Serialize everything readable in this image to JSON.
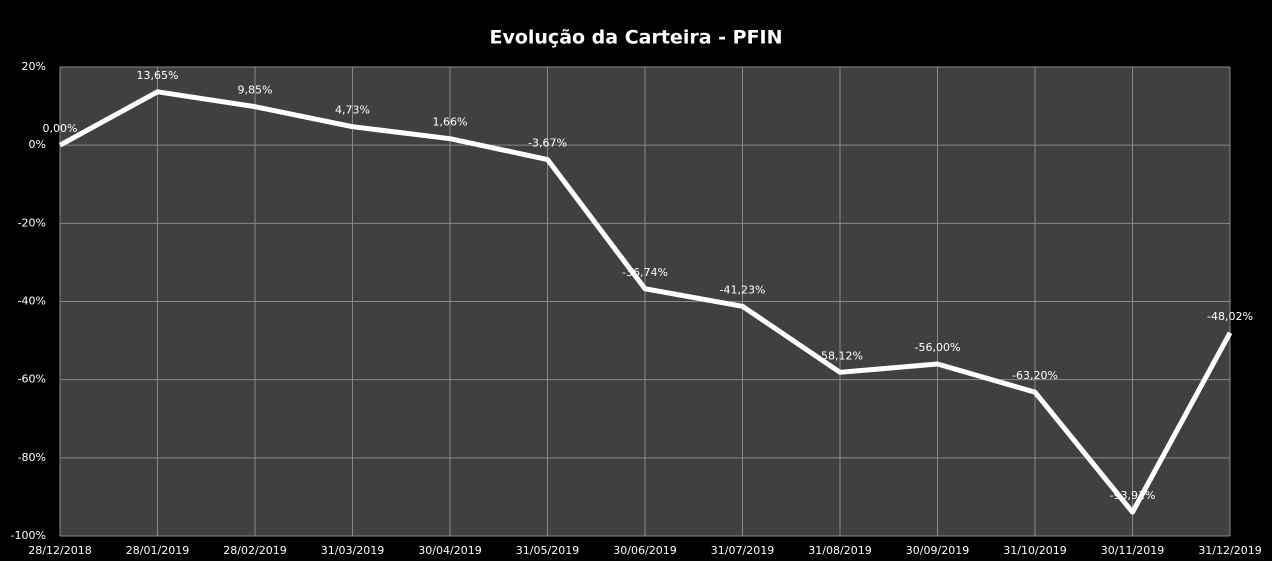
{
  "chart_data": {
    "type": "line",
    "title": "Evolução da Carteira - PFIN",
    "categories": [
      "28/12/2018",
      "28/01/2019",
      "28/02/2019",
      "31/03/2019",
      "30/04/2019",
      "31/05/2019",
      "30/06/2019",
      "31/07/2019",
      "31/08/2019",
      "30/09/2019",
      "31/10/2019",
      "30/11/2019",
      "31/12/2019"
    ],
    "series": [
      {
        "name": "PFIN",
        "color": "#ffffff",
        "values": [
          0,
          13.65,
          9.85,
          4.73,
          1.66,
          -3.67,
          -36.74,
          -41.23,
          -58.12,
          -56.0,
          -63.2,
          -93.91,
          -48.02
        ],
        "value_labels": [
          "0,00%",
          "13,65%",
          "9,85%",
          "4,73%",
          "1,66%",
          "-3,67%",
          "-36,74%",
          "-41,23%",
          "-58,12%",
          "-56,00%",
          "-63,20%",
          "-93,91%",
          "-48,02%"
        ]
      }
    ],
    "ylim": [
      -100,
      20
    ],
    "yticks": [
      {
        "value": -100,
        "label": "-100%"
      },
      {
        "value": -80,
        "label": "-80%"
      },
      {
        "value": -60,
        "label": "-60%"
      },
      {
        "value": -40,
        "label": "-40%"
      },
      {
        "value": -20,
        "label": "-20%"
      },
      {
        "value": 0,
        "label": "0%"
      },
      {
        "value": 20,
        "label": "20%"
      }
    ],
    "grid": true
  }
}
